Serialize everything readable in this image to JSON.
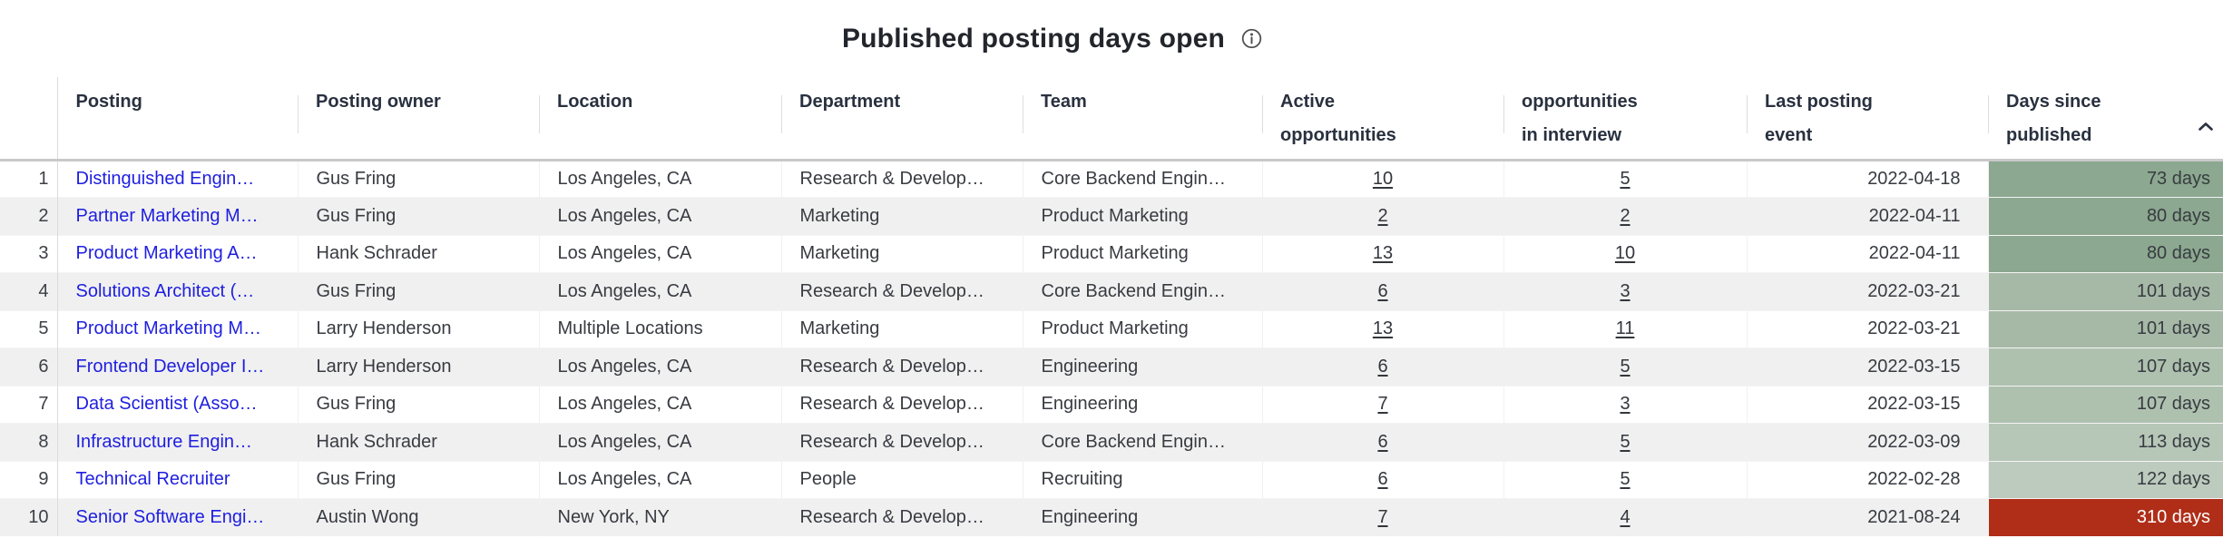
{
  "title": {
    "text": "Published posting days open",
    "info_icon": "info-icon"
  },
  "colors": {
    "link": "#1E1EE0",
    "stripe": "#F0F0F0",
    "header_text": "#29313F",
    "body_text": "#383B41",
    "header_rule": "#C9C9C9",
    "gutter_line": "#DCDCDC",
    "sort_icon": "#2B3240",
    "overdue_red": "#B02E18",
    "fresh_green": "#8CA890"
  },
  "table": {
    "columns": [
      {
        "id": "row_number",
        "label_lines": [],
        "align": "right"
      },
      {
        "id": "posting",
        "label_lines": [
          "Posting"
        ],
        "align": "left"
      },
      {
        "id": "owner",
        "label_lines": [
          "Posting owner"
        ],
        "align": "left"
      },
      {
        "id": "location",
        "label_lines": [
          "Location"
        ],
        "align": "left"
      },
      {
        "id": "department",
        "label_lines": [
          "Department"
        ],
        "align": "left"
      },
      {
        "id": "team",
        "label_lines": [
          "Team"
        ],
        "align": "left"
      },
      {
        "id": "active",
        "label_lines": [
          "Active",
          "opportunities"
        ],
        "align": "center"
      },
      {
        "id": "interview",
        "label_lines": [
          "opportunities",
          "in interview"
        ],
        "align": "center"
      },
      {
        "id": "last_event",
        "label_lines": [
          "Last posting",
          "event"
        ],
        "align": "right"
      },
      {
        "id": "days",
        "label_lines": [
          "Days since",
          "published"
        ],
        "align": "right",
        "sort": "asc",
        "sort_icon": "chevron-up-icon"
      }
    ],
    "rows": [
      {
        "row_number": "1",
        "posting": "Distinguished Engin…",
        "owner": "Gus Fring",
        "location": "Los Angeles, CA",
        "department": "Research & Develop…",
        "team": "Core Backend Engin…",
        "active": "10",
        "interview": "5",
        "last_event": "2022-04-18",
        "days": "73 days",
        "days_bg": "#8CA890",
        "days_fg": "#383B41"
      },
      {
        "row_number": "2",
        "posting": "Partner Marketing M…",
        "owner": "Gus Fring",
        "location": "Los Angeles, CA",
        "department": "Marketing",
        "team": "Product Marketing",
        "active": "2",
        "interview": "2",
        "last_event": "2022-04-11",
        "days": "80 days",
        "days_bg": "#8CA890",
        "days_fg": "#383B41"
      },
      {
        "row_number": "3",
        "posting": "Product Marketing A…",
        "owner": "Hank Schrader",
        "location": "Los Angeles, CA",
        "department": "Marketing",
        "team": "Product Marketing",
        "active": "13",
        "interview": "10",
        "last_event": "2022-04-11",
        "days": "80 days",
        "days_bg": "#8CA890",
        "days_fg": "#383B41"
      },
      {
        "row_number": "4",
        "posting": "Solutions Architect (…",
        "owner": "Gus Fring",
        "location": "Los Angeles, CA",
        "department": "Research & Develop…",
        "team": "Core Backend Engin…",
        "active": "6",
        "interview": "3",
        "last_event": "2022-03-21",
        "days": "101 days",
        "days_bg": "#A6B9A7",
        "days_fg": "#383B41"
      },
      {
        "row_number": "5",
        "posting": "Product Marketing M…",
        "owner": "Larry Henderson",
        "location": "Multiple Locations",
        "department": "Marketing",
        "team": "Product Marketing",
        "active": "13",
        "interview": "11",
        "last_event": "2022-03-21",
        "days": "101 days",
        "days_bg": "#A6B9A7",
        "days_fg": "#383B41"
      },
      {
        "row_number": "6",
        "posting": "Frontend Developer I…",
        "owner": "Larry Henderson",
        "location": "Los Angeles, CA",
        "department": "Research & Develop…",
        "team": "Engineering",
        "active": "6",
        "interview": "5",
        "last_event": "2022-03-15",
        "days": "107 days",
        "days_bg": "#AEC1AF",
        "days_fg": "#383B41"
      },
      {
        "row_number": "7",
        "posting": "Data Scientist (Asso…",
        "owner": "Gus Fring",
        "location": "Los Angeles, CA",
        "department": "Research & Develop…",
        "team": "Engineering",
        "active": "7",
        "interview": "3",
        "last_event": "2022-03-15",
        "days": "107 days",
        "days_bg": "#AEC1AF",
        "days_fg": "#383B41"
      },
      {
        "row_number": "8",
        "posting": "Infrastructure Engin…",
        "owner": "Hank Schrader",
        "location": "Los Angeles, CA",
        "department": "Research & Develop…",
        "team": "Core Backend Engin…",
        "active": "6",
        "interview": "5",
        "last_event": "2022-03-09",
        "days": "113 days",
        "days_bg": "#B6C6B7",
        "days_fg": "#383B41"
      },
      {
        "row_number": "9",
        "posting": "Technical Recruiter",
        "owner": "Gus Fring",
        "location": "Los Angeles, CA",
        "department": "People",
        "team": "Recruiting",
        "active": "6",
        "interview": "5",
        "last_event": "2022-02-28",
        "days": "122 days",
        "days_bg": "#BDCBBE",
        "days_fg": "#383B41"
      },
      {
        "row_number": "10",
        "posting": "Senior Software Engi…",
        "owner": "Austin Wong",
        "location": "New York, NY",
        "department": "Research & Develop…",
        "team": "Engineering",
        "active": "7",
        "interview": "4",
        "last_event": "2021-08-24",
        "days": "310 days",
        "days_bg": "#B02E18",
        "days_fg": "#FFFFFF"
      }
    ]
  }
}
